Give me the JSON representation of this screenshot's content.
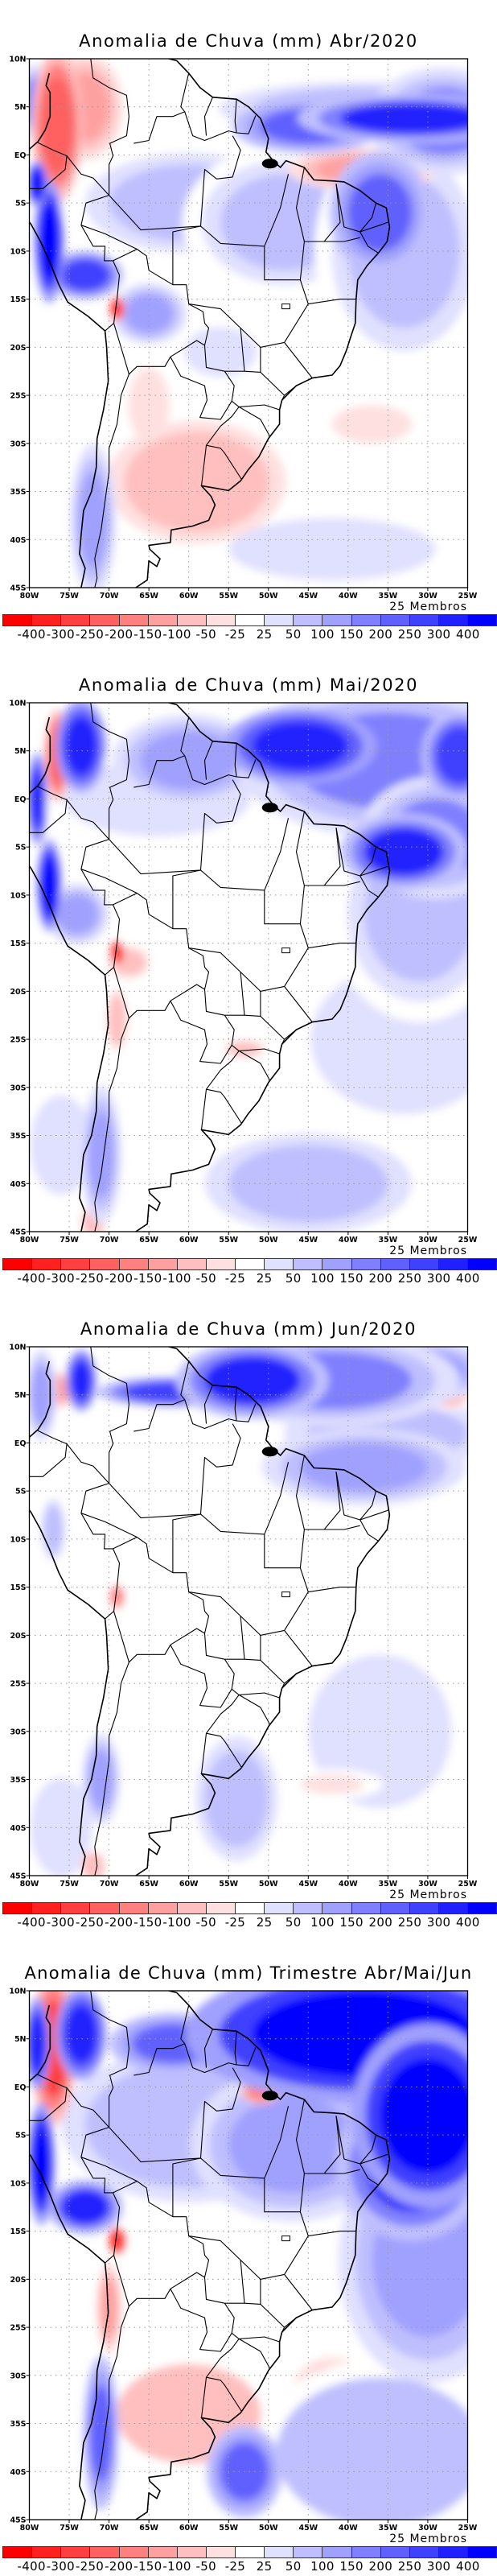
{
  "chart_data": [
    {
      "type": "heatmap",
      "title": "Anomalia de Chuva (mm) Abr/2020",
      "variable": "Anomalia de Chuva (mm)",
      "period": "Abr/2020",
      "ensemble_note": "25 Membros",
      "lat_ticks": [
        "10N",
        "5N",
        "EQ",
        "5S",
        "10S",
        "15S",
        "20S",
        "25S",
        "30S",
        "35S",
        "40S",
        "45S"
      ],
      "lon_ticks": [
        "80W",
        "75W",
        "70W",
        "65W",
        "60W",
        "55W",
        "50W",
        "45W",
        "40W",
        "35W",
        "30W",
        "25W"
      ],
      "xlim": [
        -80,
        -25
      ],
      "ylim": [
        -45,
        10
      ],
      "grid": true,
      "features": [
        {
          "lon": -32,
          "lat": 3.8,
          "rlon": 9,
          "rlat": 1.6,
          "value": 300
        },
        {
          "lon": -45,
          "lat": 3.0,
          "rlon": 6,
          "rlat": 1.8,
          "value": 200
        },
        {
          "lon": -28,
          "lat": 3.5,
          "rlon": 6,
          "rlat": 3.5,
          "value": 150
        },
        {
          "lon": -38,
          "lat": 4.8,
          "rlon": 14,
          "rlat": 2.2,
          "value": 75
        },
        {
          "lon": -36,
          "lat": -6,
          "rlon": 4,
          "rlat": 4,
          "value": 200
        },
        {
          "lon": -33,
          "lat": -10,
          "rlon": 7,
          "rlat": 8,
          "value": 75
        },
        {
          "lon": -38,
          "lat": -1.5,
          "rlon": 6,
          "rlat": 1.4,
          "value": -120
        },
        {
          "lon": -60,
          "lat": -5,
          "rlon": 10,
          "rlat": 4,
          "value": 60
        },
        {
          "lon": -48,
          "lat": -7,
          "rlon": 8,
          "rlat": 5,
          "value": 60
        },
        {
          "lon": -76.5,
          "lat": 3,
          "rlon": 2,
          "rlat": 5,
          "value": -250
        },
        {
          "lon": -73,
          "lat": 5,
          "rlon": 3,
          "rlat": 3.5,
          "value": -150
        },
        {
          "lon": -77.5,
          "lat": -9,
          "rlon": 1.2,
          "rlat": 4,
          "value": 400
        },
        {
          "lon": -73,
          "lat": -12.5,
          "rlon": 3,
          "rlat": 1.6,
          "value": 250
        },
        {
          "lon": -79,
          "lat": -3,
          "rlon": 0.8,
          "rlat": 1.5,
          "value": 400
        },
        {
          "lon": -65,
          "lat": -16.5,
          "rlon": 3,
          "rlat": 2,
          "value": 100
        },
        {
          "lon": -69,
          "lat": -16,
          "rlon": 0.6,
          "rlat": 0.8,
          "value": -400
        },
        {
          "lon": -59,
          "lat": -34,
          "rlon": 7,
          "rlat": 4,
          "value": -90
        },
        {
          "lon": -65,
          "lat": -26,
          "rlon": 2,
          "rlat": 3,
          "value": -40
        },
        {
          "lon": -72,
          "lat": -38,
          "rlon": 1.8,
          "rlat": 5,
          "value": 110
        },
        {
          "lon": -56,
          "lat": -20.5,
          "rlon": 3.5,
          "rlat": 2,
          "value": 45
        },
        {
          "lon": -37,
          "lat": -28,
          "rlon": 5,
          "rlat": 2,
          "value": -35
        },
        {
          "lon": -42,
          "lat": -41,
          "rlon": 10,
          "rlat": 2.5,
          "value": 40
        },
        {
          "lon": -79.5,
          "lat": 5.5,
          "rlon": 1,
          "rlat": 2.5,
          "value": 150
        }
      ]
    },
    {
      "type": "heatmap",
      "title": "Anomalia de Chuva (mm) Mai/2020",
      "variable": "Anomalia de Chuva (mm)",
      "period": "Mai/2020",
      "ensemble_note": "25 Membros",
      "lat_ticks": [
        "10N",
        "5N",
        "EQ",
        "5S",
        "10S",
        "15S",
        "20S",
        "25S",
        "30S",
        "35S",
        "40S",
        "45S"
      ],
      "lon_ticks": [
        "80W",
        "75W",
        "70W",
        "65W",
        "60W",
        "55W",
        "50W",
        "45W",
        "40W",
        "35W",
        "30W",
        "25W"
      ],
      "xlim": [
        -80,
        -25
      ],
      "ylim": [
        -45,
        10
      ],
      "grid": true,
      "features": [
        {
          "lon": -46,
          "lat": 5.5,
          "rlon": 6,
          "rlat": 2.5,
          "value": 350
        },
        {
          "lon": -35,
          "lat": 4,
          "rlon": 12,
          "rlat": 5,
          "value": 150
        },
        {
          "lon": -26,
          "lat": 4.5,
          "rlon": 3,
          "rlat": 3,
          "value": 250
        },
        {
          "lon": -33,
          "lat": -5.5,
          "rlon": 5,
          "rlat": 2.5,
          "value": 300
        },
        {
          "lon": -29,
          "lat": -4,
          "rlon": 6,
          "rlat": 4,
          "value": 150
        },
        {
          "lon": -31,
          "lat": -12,
          "rlon": 7,
          "rlat": 7,
          "value": 50
        },
        {
          "lon": -33,
          "lat": -25,
          "rlon": 9,
          "rlat": 6,
          "value": 45
        },
        {
          "lon": -45,
          "lat": -40,
          "rlon": 10,
          "rlat": 4,
          "value": 70
        },
        {
          "lon": -60,
          "lat": 4,
          "rlon": 6,
          "rlat": 3,
          "value": 100
        },
        {
          "lon": -64,
          "lat": 0,
          "rlon": 9,
          "rlat": 3,
          "value": 40
        },
        {
          "lon": -76.5,
          "lat": 4.5,
          "rlon": 1,
          "rlat": 3,
          "value": -250
        },
        {
          "lon": -73.5,
          "lat": 5.5,
          "rlon": 2,
          "rlat": 3,
          "value": 350
        },
        {
          "lon": -79,
          "lat": 0,
          "rlon": 0.8,
          "rlat": 3,
          "value": 350
        },
        {
          "lon": -77.5,
          "lat": -9,
          "rlon": 1.0,
          "rlat": 3,
          "value": 400
        },
        {
          "lon": -74,
          "lat": -12,
          "rlon": 2.5,
          "rlat": 2,
          "value": 100
        },
        {
          "lon": -69,
          "lat": -16,
          "rlon": 0.6,
          "rlat": 0.8,
          "value": -400
        },
        {
          "lon": -67.5,
          "lat": -17,
          "rlon": 2,
          "rlat": 1.3,
          "value": -60
        },
        {
          "lon": -69,
          "lat": -23,
          "rlon": 0.8,
          "rlat": 2,
          "value": -90
        },
        {
          "lon": -71,
          "lat": -37,
          "rlon": 1.6,
          "rlat": 4.5,
          "value": 110
        },
        {
          "lon": -76,
          "lat": -36,
          "rlon": 3,
          "rlat": 4,
          "value": 40
        },
        {
          "lon": -53,
          "lat": -26,
          "rlon": 2,
          "rlat": 0.7,
          "value": -60
        },
        {
          "lon": -72,
          "lat": -44,
          "rlon": 1,
          "rlat": 1,
          "value": -90
        }
      ]
    },
    {
      "type": "heatmap",
      "title": "Anomalia de Chuva (mm) Jun/2020",
      "variable": "Anomalia de Chuva (mm)",
      "period": "Jun/2020",
      "ensemble_note": "25 Membros",
      "lat_ticks": [
        "10N",
        "5N",
        "EQ",
        "5S",
        "10S",
        "15S",
        "20S",
        "25S",
        "30S",
        "35S",
        "40S",
        "45S"
      ],
      "lon_ticks": [
        "80W",
        "75W",
        "70W",
        "65W",
        "60W",
        "55W",
        "50W",
        "45W",
        "40W",
        "35W",
        "30W",
        "25W"
      ],
      "xlim": [
        -80,
        -25
      ],
      "ylim": [
        -45,
        10
      ],
      "grid": true,
      "features": [
        {
          "lon": -52,
          "lat": 6.5,
          "rlon": 6,
          "rlat": 2.5,
          "value": 300
        },
        {
          "lon": -42,
          "lat": 6.5,
          "rlon": 10,
          "rlat": 3,
          "value": 150
        },
        {
          "lon": -30,
          "lat": 7.5,
          "rlon": 5,
          "rlat": 2,
          "value": 100
        },
        {
          "lon": -38,
          "lat": -2.5,
          "rlon": 8,
          "rlat": 2.5,
          "value": 120
        },
        {
          "lon": -35,
          "lat": 1,
          "rlon": 10,
          "rlat": 3,
          "value": 50
        },
        {
          "lon": -27.5,
          "lat": 5,
          "rlon": 2,
          "rlat": 1,
          "value": -80
        },
        {
          "lon": -36,
          "lat": -30,
          "rlon": 9,
          "rlat": 8,
          "value": 35
        },
        {
          "lon": -54,
          "lat": -37,
          "rlon": 4,
          "rlat": 5,
          "value": 70
        },
        {
          "lon": -62,
          "lat": 5.3,
          "rlon": 6,
          "rlat": 1,
          "value": 250
        },
        {
          "lon": -73.5,
          "lat": 6.5,
          "rlon": 1.2,
          "rlat": 2,
          "value": 350
        },
        {
          "lon": -76.5,
          "lat": 5.5,
          "rlon": 1.5,
          "rlat": 1.2,
          "value": -120
        },
        {
          "lon": -78.5,
          "lat": 5,
          "rlon": 1.2,
          "rlat": 3,
          "value": 120
        },
        {
          "lon": -77,
          "lat": -9,
          "rlon": 1.2,
          "rlat": 2.5,
          "value": 60
        },
        {
          "lon": -69,
          "lat": -16,
          "rlon": 0.6,
          "rlat": 0.8,
          "value": -200
        },
        {
          "lon": -71,
          "lat": -35,
          "rlon": 1.5,
          "rlat": 3,
          "value": 100
        },
        {
          "lon": -76,
          "lat": -40,
          "rlon": 3,
          "rlat": 4,
          "value": 40
        },
        {
          "lon": -72,
          "lat": -44,
          "rlon": 1,
          "rlat": 1,
          "value": -90
        },
        {
          "lon": -42,
          "lat": -35.5,
          "rlon": 4,
          "rlat": 1,
          "value": -35
        }
      ]
    },
    {
      "type": "heatmap",
      "title": "Anomalia de Chuva (mm) Trimestre Abr/Mai/Jun",
      "variable": "Anomalia de Chuva (mm)",
      "period": "Trimestre Abr/Mai/Jun",
      "ensemble_note": "25 Membros",
      "lat_ticks": [
        "10N",
        "5N",
        "EQ",
        "5S",
        "10S",
        "15S",
        "20S",
        "25S",
        "30S",
        "35S",
        "40S",
        "45S"
      ],
      "lon_ticks": [
        "80W",
        "75W",
        "70W",
        "65W",
        "60W",
        "55W",
        "50W",
        "45W",
        "40W",
        "35W",
        "30W",
        "25W"
      ],
      "xlim": [
        -80,
        -25
      ],
      "ylim": [
        -45,
        10
      ],
      "grid": true,
      "features": [
        {
          "lon": -38,
          "lat": 5.5,
          "rlon": 14,
          "rlat": 4.5,
          "value": 450
        },
        {
          "lon": -30,
          "lat": -3,
          "rlon": 6,
          "rlat": 6,
          "value": 450
        },
        {
          "lon": -32,
          "lat": -8,
          "rlon": 6,
          "rlat": 5,
          "value": 300
        },
        {
          "lon": -30,
          "lat": -18,
          "rlon": 7,
          "rlat": 8,
          "value": 120
        },
        {
          "lon": -36,
          "lat": -38,
          "rlon": 10,
          "rlat": 6,
          "value": 80
        },
        {
          "lon": -53,
          "lat": -40,
          "rlon": 3,
          "rlat": 3,
          "value": 220
        },
        {
          "lon": -60,
          "lat": -4,
          "rlon": 10,
          "rlat": 5,
          "value": 90
        },
        {
          "lon": -47,
          "lat": -6,
          "rlon": 8,
          "rlat": 5,
          "value": 100
        },
        {
          "lon": -62,
          "lat": 4.5,
          "rlon": 5,
          "rlat": 2,
          "value": 230
        },
        {
          "lon": -77,
          "lat": 4,
          "rlon": 1.8,
          "rlat": 5,
          "value": -300
        },
        {
          "lon": -79,
          "lat": 4.5,
          "rlon": 1,
          "rlat": 3,
          "value": 350
        },
        {
          "lon": -73.5,
          "lat": 5.5,
          "rlon": 2,
          "rlat": 3,
          "value": 350
        },
        {
          "lon": -78.5,
          "lat": -8,
          "rlon": 1.1,
          "rlat": 4,
          "value": 400
        },
        {
          "lon": -73,
          "lat": -12.5,
          "rlon": 3,
          "rlat": 1.8,
          "value": 300
        },
        {
          "lon": -69,
          "lat": -16,
          "rlon": 0.7,
          "rlat": 0.9,
          "value": -400
        },
        {
          "lon": -70,
          "lat": -23,
          "rlon": 1,
          "rlat": 3,
          "value": -150
        },
        {
          "lon": -60,
          "lat": -34,
          "rlon": 7,
          "rlat": 4,
          "value": -80
        },
        {
          "lon": -71,
          "lat": -36,
          "rlon": 1.4,
          "rlat": 5,
          "value": 220
        },
        {
          "lon": -51,
          "lat": -0.5,
          "rlon": 1.5,
          "rlat": 0.8,
          "value": -200
        },
        {
          "lon": -42,
          "lat": -32,
          "rlon": 4,
          "rlat": 3,
          "value": -60
        }
      ]
    }
  ],
  "colorbar": {
    "labels": [
      "-400",
      "-300",
      "-250",
      "-200",
      "-150",
      "-100",
      "-50",
      "-25",
      "25",
      "50",
      "100",
      "150",
      "200",
      "250",
      "300",
      "400"
    ],
    "levels": [
      -400,
      -300,
      -250,
      -200,
      -150,
      -100,
      -50,
      -25,
      25,
      50,
      100,
      150,
      200,
      250,
      300,
      400
    ],
    "colors": [
      "#ff0000",
      "#ff2020",
      "#ff4040",
      "#ff6060",
      "#ff8080",
      "#ffa0a0",
      "#ffbfbf",
      "#ffe0e0",
      "#ffffff",
      "#e0e0ff",
      "#bfbfff",
      "#a0a0ff",
      "#8080ff",
      "#6060ff",
      "#4040ff",
      "#2020ff",
      "#0000ff"
    ]
  },
  "panels": [
    {
      "title": "Anomalia de Chuva (mm) Abr/2020",
      "members": "25 Membros"
    },
    {
      "title": "Anomalia de Chuva (mm) Mai/2020",
      "members": "25 Membros"
    },
    {
      "title": "Anomalia de Chuva (mm) Jun/2020",
      "members": "25 Membros"
    },
    {
      "title": "Anomalia de Chuva (mm) Trimestre Abr/Mai/Jun",
      "members": "25 Membros"
    }
  ]
}
